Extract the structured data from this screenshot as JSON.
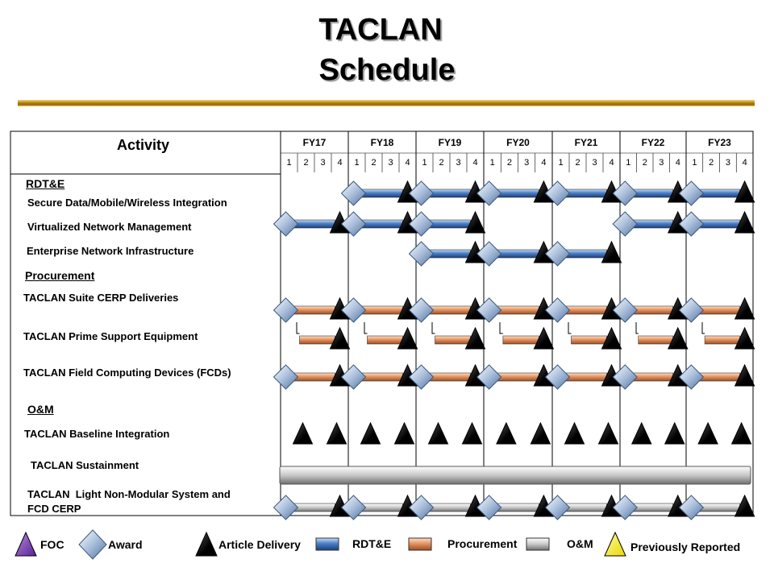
{
  "title_line1": "TACLAN",
  "title_line2": "Schedule",
  "chart_data": {
    "type": "gantt",
    "activity_header": "Activity",
    "fiscal_years": [
      "FY17",
      "FY18",
      "FY19",
      "FY20",
      "FY21",
      "FY22",
      "FY23"
    ],
    "quarters": [
      "1",
      "2",
      "3",
      "4"
    ],
    "sections": [
      {
        "name": "RDT&E",
        "rows": [
          {
            "label": "Secure Data/Mobile/Wireless Integration",
            "bar_type": "RDT&E",
            "milestones": [
              {
                "award": "FY18 Q1",
                "delivery": "FY18 Q4"
              },
              {
                "award": "FY19 Q1",
                "delivery": "FY19 Q4"
              },
              {
                "award": "FY20 Q1",
                "delivery": "FY20 Q4"
              },
              {
                "award": "FY21 Q1",
                "delivery": "FY21 Q4"
              },
              {
                "award": "FY22 Q1",
                "delivery": "FY22 Q4"
              },
              {
                "award": "FY23 Q1",
                "delivery": "FY23 Q4"
              }
            ]
          },
          {
            "label": "Virtualized Network Management",
            "bar_type": "RDT&E",
            "milestones": [
              {
                "award": "FY17 Q1",
                "delivery": "FY17 Q4"
              },
              {
                "award": "FY18 Q1",
                "delivery": "FY18 Q4"
              },
              {
                "award": "FY19 Q1",
                "delivery": "FY19 Q4"
              },
              {
                "award": "FY22 Q1",
                "delivery": "FY22 Q4"
              },
              {
                "award": "FY23 Q1",
                "delivery": "FY23 Q4"
              }
            ]
          },
          {
            "label": "Enterprise Network Infrastructure",
            "bar_type": "RDT&E",
            "milestones": [
              {
                "award": "FY19 Q1",
                "delivery": "FY19 Q4"
              },
              {
                "award": "FY20 Q1",
                "delivery": "FY20 Q4"
              },
              {
                "award": "FY21 Q1",
                "delivery": "FY21 Q4"
              }
            ]
          }
        ]
      },
      {
        "name": "Procurement",
        "rows": [
          {
            "label": "TACLAN  Suite CERP Deliveries",
            "bar_type": "Procurement",
            "milestones": [
              {
                "award": "FY17 Q1",
                "delivery": "FY17 Q4"
              },
              {
                "award": "FY18 Q1",
                "delivery": "FY18 Q4"
              },
              {
                "award": "FY19 Q1",
                "delivery": "FY19 Q4"
              },
              {
                "award": "FY20 Q1",
                "delivery": "FY20 Q4"
              },
              {
                "award": "FY21 Q1",
                "delivery": "FY21 Q4"
              },
              {
                "award": "FY22 Q1",
                "delivery": "FY22 Q4"
              },
              {
                "award": "FY23 Q1",
                "delivery": "FY23 Q4"
              }
            ]
          },
          {
            "label": "TACLAN  Prime Support Equipment",
            "bar_type": "Procurement",
            "milestones": [
              {
                "start": "FY17 Q2",
                "delivery": "FY17 Q4"
              },
              {
                "start": "FY18 Q2",
                "delivery": "FY18 Q4"
              },
              {
                "start": "FY19 Q2",
                "delivery": "FY19 Q4"
              },
              {
                "start": "FY20 Q2",
                "delivery": "FY20 Q4"
              },
              {
                "start": "FY21 Q2",
                "delivery": "FY21 Q4"
              },
              {
                "start": "FY22 Q2",
                "delivery": "FY22 Q4"
              },
              {
                "start": "FY23 Q2",
                "delivery": "FY23 Q4"
              }
            ]
          },
          {
            "label": "TACLAN  Field Computing Devices (FCDs)",
            "bar_type": "Procurement",
            "milestones": [
              {
                "award": "FY17 Q1",
                "delivery": "FY17 Q4"
              },
              {
                "award": "FY18 Q1",
                "delivery": "FY18 Q4"
              },
              {
                "award": "FY19 Q1",
                "delivery": "FY19 Q4"
              },
              {
                "award": "FY20 Q1",
                "delivery": "FY20 Q4"
              },
              {
                "award": "FY21 Q1",
                "delivery": "FY21 Q4"
              },
              {
                "award": "FY22 Q1",
                "delivery": "FY22 Q4"
              },
              {
                "award": "FY23 Q1",
                "delivery": "FY23 Q4"
              }
            ]
          }
        ]
      },
      {
        "name": "O&M",
        "rows": [
          {
            "label": "TACLAN  Baseline Integration",
            "bar_type": "none",
            "deliveries": [
              "FY17 Q2",
              "FY17 Q4",
              "FY18 Q2",
              "FY18 Q4",
              "FY19 Q2",
              "FY19 Q4",
              "FY20 Q2",
              "FY20 Q4",
              "FY21 Q2",
              "FY21 Q4",
              "FY22 Q2",
              "FY22 Q4",
              "FY23 Q2",
              "FY23 Q4"
            ]
          },
          {
            "label": "TACLAN  Sustainment",
            "bar_type": "O&M",
            "span": [
              "FY17 Q1",
              "FY23 Q4"
            ]
          },
          {
            "label": "TACLAN  Light Non-Modular System and\nFCD CERP",
            "bar_type": "O&M",
            "milestones": [
              {
                "award": "FY17 Q1",
                "delivery": "FY17 Q4"
              },
              {
                "award": "FY18 Q1",
                "delivery": "FY18 Q4"
              },
              {
                "award": "FY19 Q1",
                "delivery": "FY19 Q4"
              },
              {
                "award": "FY20 Q1",
                "delivery": "FY20 Q4"
              },
              {
                "award": "FY21 Q1",
                "delivery": "FY21 Q4"
              },
              {
                "award": "FY22 Q1",
                "delivery": "FY22 Q4"
              },
              {
                "award": "FY23 Q1",
                "delivery": "FY23 Q4"
              }
            ]
          }
        ]
      }
    ]
  },
  "legend": [
    {
      "label": "FOC",
      "symbol": "triangle",
      "color": "#7d3fb5"
    },
    {
      "label": "Award",
      "symbol": "diamond",
      "color": "#9fb6d6"
    },
    {
      "label": "Article Delivery",
      "symbol": "triangle",
      "color": "#000000"
    },
    {
      "label": "RDT&E",
      "symbol": "bar",
      "color": "#4a7fc7"
    },
    {
      "label": "Procurement",
      "symbol": "bar",
      "color": "#e69463"
    },
    {
      "label": "O&M",
      "symbol": "bar",
      "color": "#c8c8c8"
    },
    {
      "label": "Previously Reported",
      "symbol": "triangle",
      "color": "#ffee00"
    }
  ]
}
